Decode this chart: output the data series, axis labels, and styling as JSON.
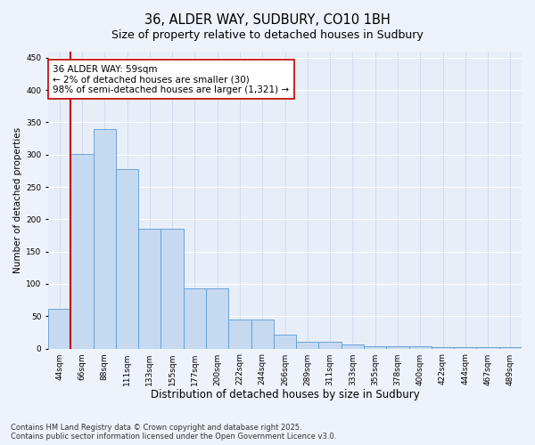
{
  "title": "36, ALDER WAY, SUDBURY, CO10 1BH",
  "subtitle": "Size of property relative to detached houses in Sudbury",
  "xlabel": "Distribution of detached houses by size in Sudbury",
  "ylabel": "Number of detached properties",
  "categories": [
    "44sqm",
    "66sqm",
    "88sqm",
    "111sqm",
    "133sqm",
    "155sqm",
    "177sqm",
    "200sqm",
    "222sqm",
    "244sqm",
    "266sqm",
    "289sqm",
    "311sqm",
    "333sqm",
    "355sqm",
    "378sqm",
    "400sqm",
    "422sqm",
    "444sqm",
    "467sqm",
    "489sqm"
  ],
  "values": [
    62,
    301,
    340,
    277,
    185,
    185,
    93,
    93,
    45,
    45,
    21,
    11,
    11,
    7,
    4,
    4,
    3,
    2,
    2,
    2,
    2
  ],
  "bar_color": "#c5d9f0",
  "bar_edge_color": "#5b9bd5",
  "highlight_line_color": "#c00000",
  "annotation_text": "36 ALDER WAY: 59sqm\n← 2% of detached houses are smaller (30)\n98% of semi-detached houses are larger (1,321) →",
  "annotation_fontsize": 7.5,
  "ylim": [
    0,
    460
  ],
  "yticks": [
    0,
    50,
    100,
    150,
    200,
    250,
    300,
    350,
    400,
    450
  ],
  "footer": "Contains HM Land Registry data © Crown copyright and database right 2025.\nContains public sector information licensed under the Open Government Licence v3.0.",
  "background_color": "#eef2fa",
  "plot_background": "#e8eef8",
  "grid_color": "#c8d4e8",
  "title_fontsize": 10.5,
  "subtitle_fontsize": 9,
  "xlabel_fontsize": 8.5,
  "ylabel_fontsize": 7.5,
  "tick_fontsize": 6.5,
  "footer_fontsize": 6
}
